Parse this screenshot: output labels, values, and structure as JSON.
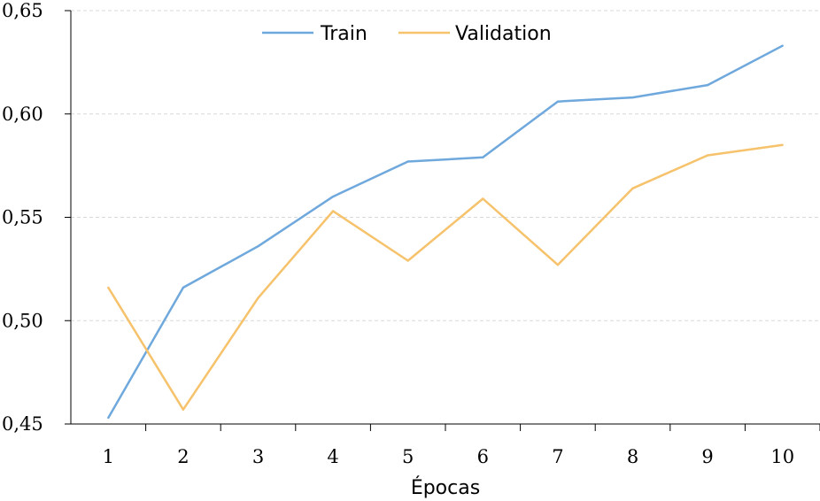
{
  "chart_data": {
    "type": "line",
    "title": "",
    "xlabel": "Épocas",
    "ylabel": "",
    "categories": [
      "1",
      "2",
      "3",
      "4",
      "5",
      "6",
      "7",
      "8",
      "9",
      "10"
    ],
    "series": [
      {
        "name": "Train",
        "color": "#6fa8dc",
        "values": [
          0.453,
          0.516,
          0.536,
          0.56,
          0.577,
          0.579,
          0.606,
          0.608,
          0.614,
          0.633
        ]
      },
      {
        "name": "Validation",
        "color": "#f6c26b",
        "values": [
          0.516,
          0.457,
          0.511,
          0.553,
          0.529,
          0.559,
          0.527,
          0.564,
          0.58,
          0.585
        ]
      }
    ],
    "ylim": [
      0.45,
      0.65
    ],
    "yticks": [
      {
        "value": 0.45,
        "label": "0,45"
      },
      {
        "value": 0.5,
        "label": "0,50"
      },
      {
        "value": 0.55,
        "label": "0,55"
      },
      {
        "value": 0.6,
        "label": "0,60"
      },
      {
        "value": 0.65,
        "label": "0,65"
      }
    ],
    "grid": true,
    "legend_position": "top-center"
  }
}
